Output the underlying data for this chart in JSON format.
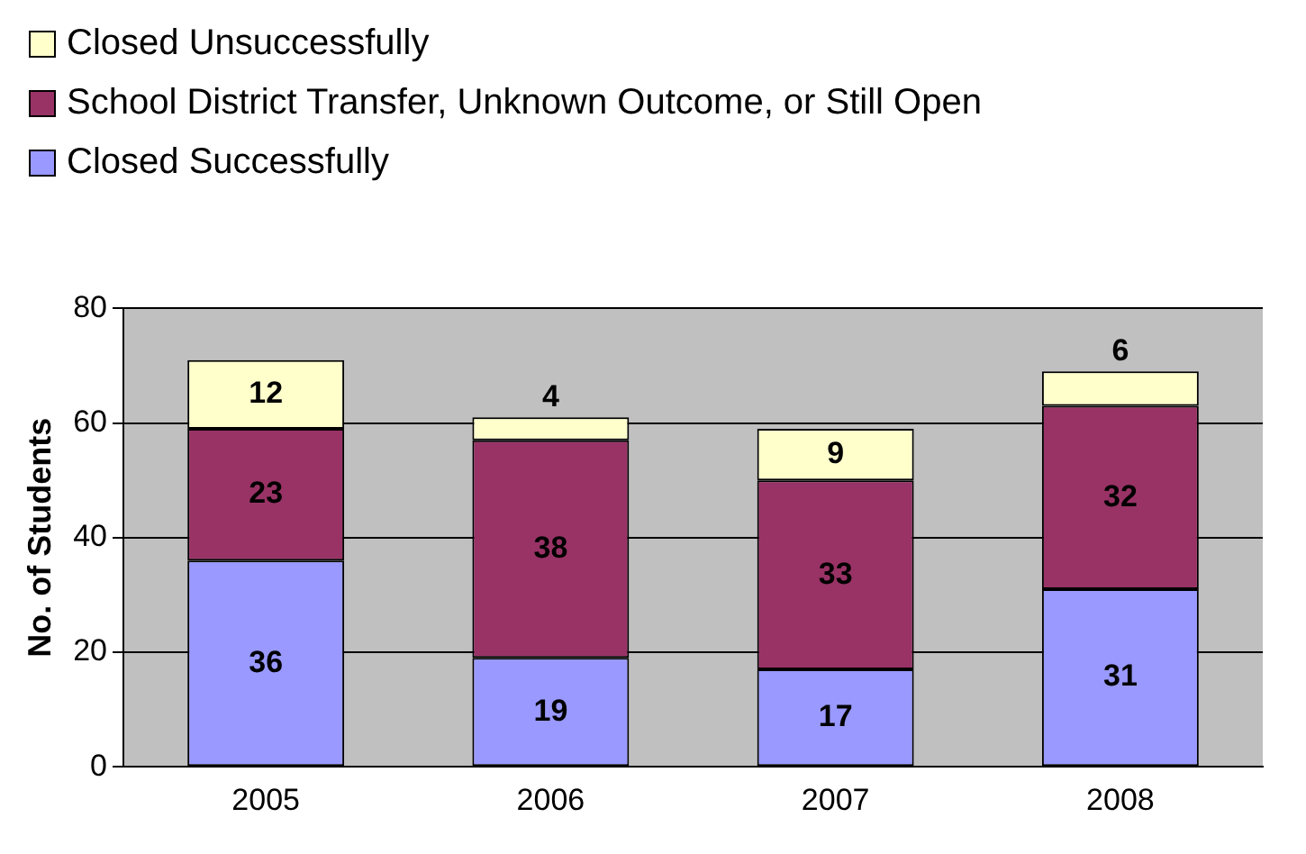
{
  "chart_data": {
    "type": "bar",
    "stacked": true,
    "ylabel": "No. of Students",
    "categories": [
      "2005",
      "2006",
      "2007",
      "2008"
    ],
    "series": [
      {
        "name": "Closed Successfully",
        "color": "#9999ff",
        "values": [
          36,
          19,
          17,
          31
        ]
      },
      {
        "name": "School District Transfer, Unknown Outcome, or Still Open",
        "color": "#993366",
        "values": [
          23,
          38,
          33,
          32
        ]
      },
      {
        "name": "Closed Unsuccessfully",
        "color": "#ffffcc",
        "values": [
          12,
          4,
          9,
          6
        ]
      }
    ],
    "ylim": [
      0,
      80
    ],
    "yticks": [
      0,
      20,
      40,
      60,
      80
    ],
    "grid": "y",
    "legend": "top left",
    "data_labels": true
  }
}
